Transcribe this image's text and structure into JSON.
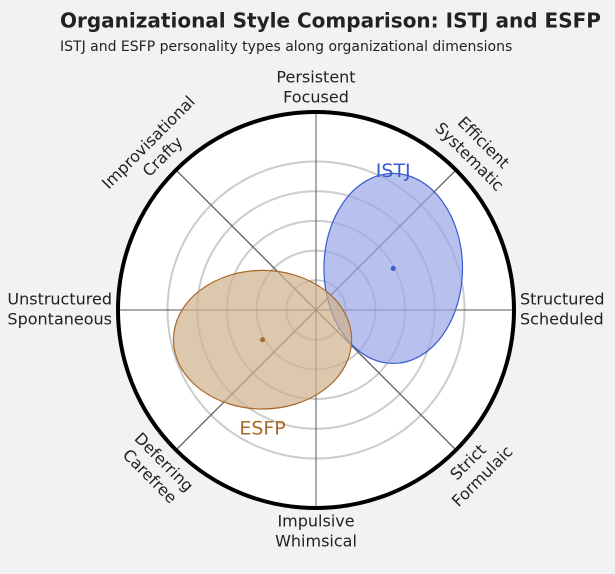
{
  "chart_data": {
    "type": "polar-ellipse",
    "title": "Organizational Style Comparison: ISTJ and ESFP",
    "subtitle": "ISTJ and ESFP personality types along organizational dimensions",
    "axes": [
      [
        "Persistent",
        "Focused"
      ],
      [
        "Efficient",
        "Systematic"
      ],
      [
        "Structured",
        "Scheduled"
      ],
      [
        "Strict",
        "Formulaic"
      ],
      [
        "Impulsive",
        "Whimsical"
      ],
      [
        "Deferring",
        "Carefree"
      ],
      [
        "Unstructured",
        "Spontaneous"
      ],
      [
        "Improvisational",
        "Crafty"
      ]
    ],
    "rlim": [
      0,
      100
    ],
    "rticks": [
      15,
      30,
      45,
      60,
      75
    ],
    "series": [
      {
        "name": "ISTJ",
        "color": "#3a5bd0",
        "fill": "#9aa6e6",
        "x": 39,
        "y": 21,
        "rx": 35,
        "ry": 48
      },
      {
        "name": "ESFP",
        "color": "#a8692a",
        "fill": "#cfb08c",
        "x": -27,
        "y": -15,
        "rx": 45,
        "ry": 35
      }
    ]
  }
}
